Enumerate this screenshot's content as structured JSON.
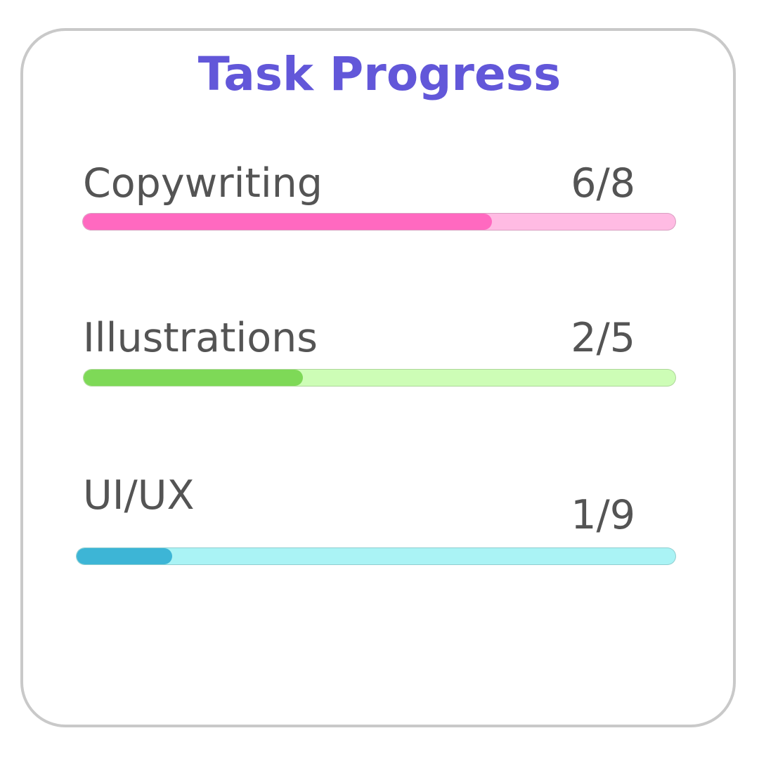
{
  "widget": {
    "title": "Task Progress"
  },
  "tasks": [
    {
      "label": "Copywriting",
      "count_text": "6/8",
      "completed": 6,
      "total": 8,
      "progress_fraction": 0.69,
      "fill_color": "#ff69c0",
      "track_color": "#ffbbe3"
    },
    {
      "label": "Illustrations",
      "count_text": "2/5",
      "completed": 2,
      "total": 5,
      "progress_fraction": 0.37,
      "fill_color": "#7ed957",
      "track_color": "#cdfdb6"
    },
    {
      "label": "UI/UX",
      "count_text": "1/9",
      "completed": 1,
      "total": 9,
      "progress_fraction": 0.16,
      "fill_color": "#3db5d6",
      "track_color": "#aaf3f5"
    }
  ]
}
